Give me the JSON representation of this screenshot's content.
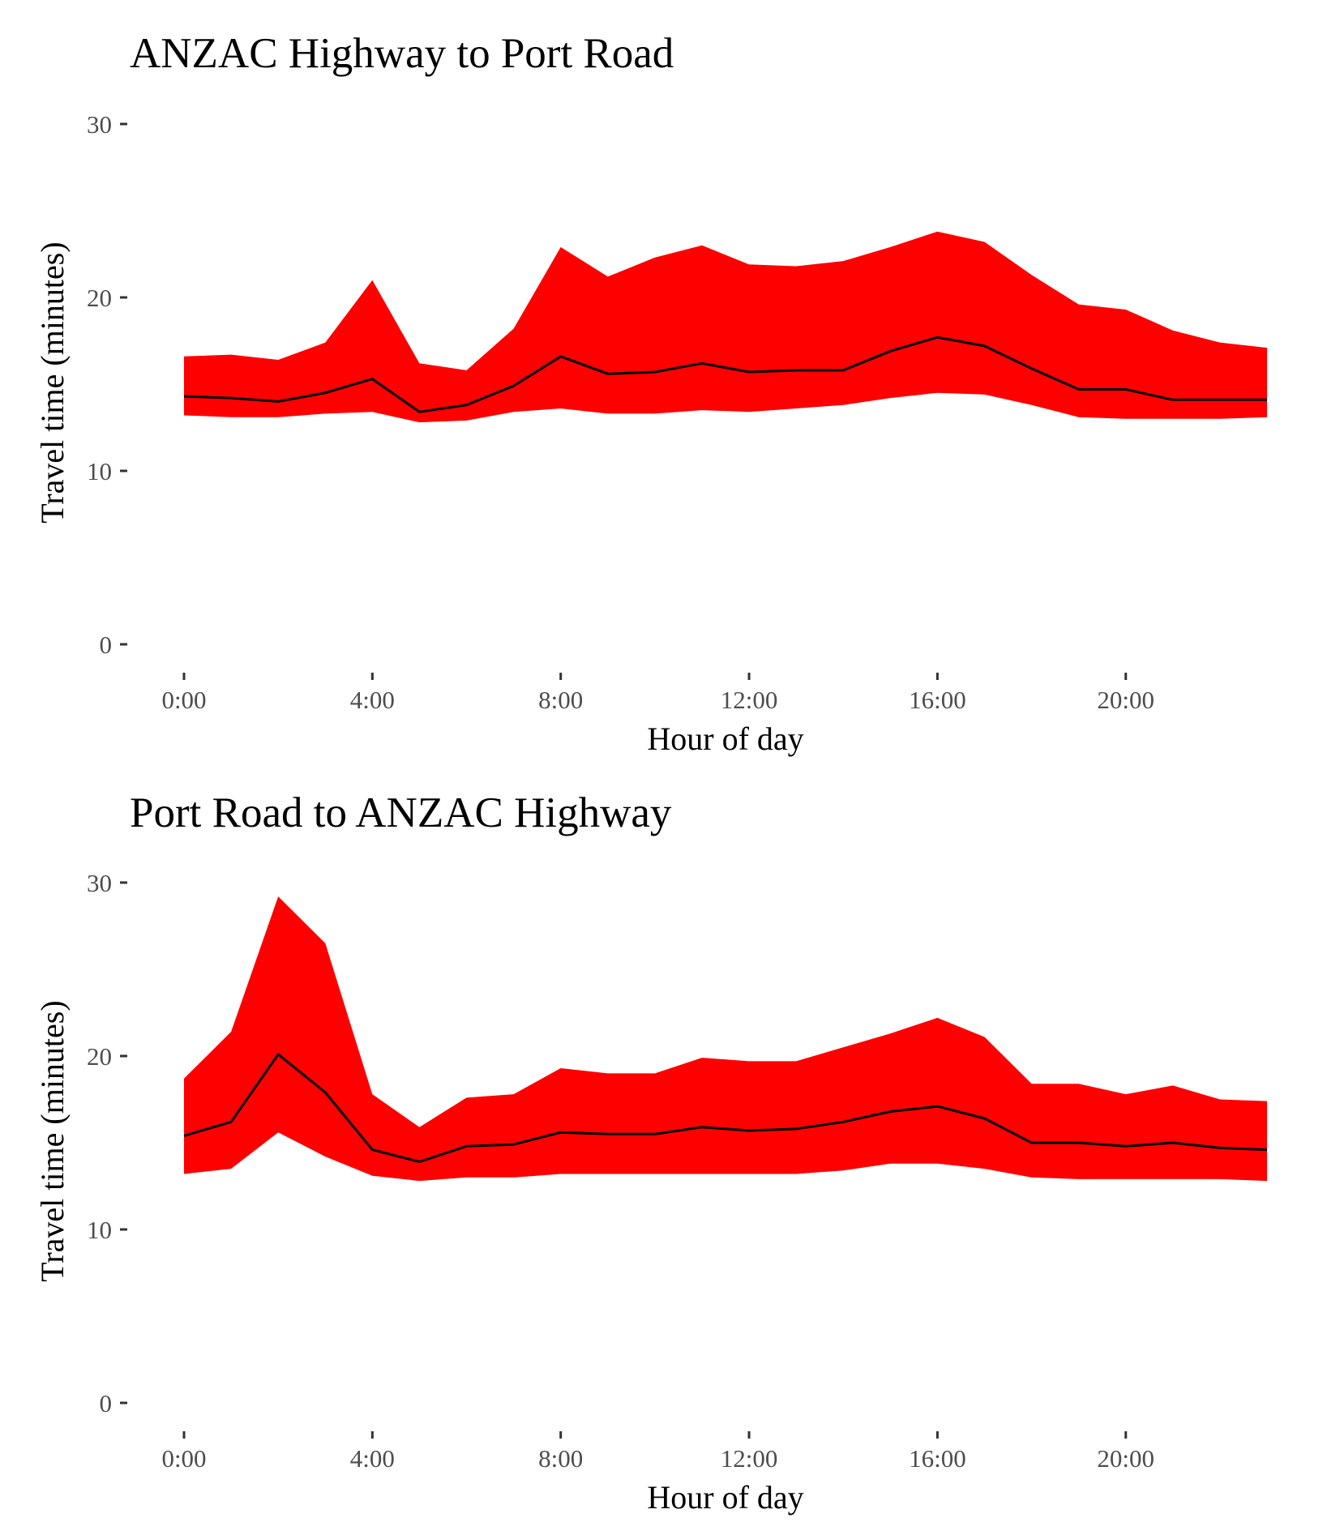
{
  "chart_data": [
    {
      "type": "area",
      "title": "ANZAC Highway to Port Road",
      "xlabel": "Hour of day",
      "ylabel": "Travel time (minutes)",
      "ylim": [
        0,
        30
      ],
      "xlim": [
        0,
        23
      ],
      "grid": false,
      "x_ticks": [
        {
          "value": 0,
          "label": "0:00"
        },
        {
          "value": 4,
          "label": "4:00"
        },
        {
          "value": 8,
          "label": "8:00"
        },
        {
          "value": 12,
          "label": "12:00"
        },
        {
          "value": 16,
          "label": "16:00"
        },
        {
          "value": 20,
          "label": "20:00"
        }
      ],
      "y_ticks": [
        {
          "value": 0,
          "label": "0"
        },
        {
          "value": 10,
          "label": "10"
        },
        {
          "value": 20,
          "label": "20"
        },
        {
          "value": 30,
          "label": "30"
        }
      ],
      "band_color": "#ff0000",
      "line_color": "#000000",
      "x": [
        0,
        1,
        2,
        3,
        4,
        5,
        6,
        7,
        8,
        9,
        10,
        11,
        12,
        13,
        14,
        15,
        16,
        17,
        18,
        19,
        20,
        21,
        22,
        23
      ],
      "band_upper": [
        16.6,
        16.7,
        16.4,
        17.4,
        21.0,
        16.2,
        15.8,
        18.2,
        22.9,
        21.2,
        22.3,
        23.0,
        21.9,
        21.8,
        22.1,
        22.9,
        23.8,
        23.2,
        21.3,
        19.6,
        19.3,
        18.1,
        17.4,
        17.1
      ],
      "band_lower": [
        13.2,
        13.1,
        13.1,
        13.3,
        13.4,
        12.8,
        12.9,
        13.4,
        13.6,
        13.3,
        13.3,
        13.5,
        13.4,
        13.6,
        13.8,
        14.2,
        14.5,
        14.4,
        13.8,
        13.1,
        13.0,
        13.0,
        13.0,
        13.1
      ],
      "median": [
        14.3,
        14.2,
        14.0,
        14.5,
        15.3,
        13.4,
        13.8,
        14.9,
        16.6,
        15.6,
        15.7,
        16.2,
        15.7,
        15.8,
        15.8,
        16.9,
        17.7,
        17.2,
        15.9,
        14.7,
        14.7,
        14.1,
        14.1,
        14.1
      ]
    },
    {
      "type": "area",
      "title": "Port Road to ANZAC Highway",
      "xlabel": "Hour of day",
      "ylabel": "Travel time (minutes)",
      "ylim": [
        0,
        30
      ],
      "xlim": [
        0,
        23
      ],
      "grid": false,
      "x_ticks": [
        {
          "value": 0,
          "label": "0:00"
        },
        {
          "value": 4,
          "label": "4:00"
        },
        {
          "value": 8,
          "label": "8:00"
        },
        {
          "value": 12,
          "label": "12:00"
        },
        {
          "value": 16,
          "label": "16:00"
        },
        {
          "value": 20,
          "label": "20:00"
        }
      ],
      "y_ticks": [
        {
          "value": 0,
          "label": "0"
        },
        {
          "value": 10,
          "label": "10"
        },
        {
          "value": 20,
          "label": "20"
        },
        {
          "value": 30,
          "label": "30"
        }
      ],
      "band_color": "#ff0000",
      "line_color": "#000000",
      "x": [
        0,
        1,
        2,
        3,
        4,
        5,
        6,
        7,
        8,
        9,
        10,
        11,
        12,
        13,
        14,
        15,
        16,
        17,
        18,
        19,
        20,
        21,
        22,
        23
      ],
      "band_upper": [
        18.7,
        21.4,
        29.2,
        26.5,
        17.8,
        15.9,
        17.6,
        17.8,
        19.3,
        19.0,
        19.0,
        19.9,
        19.7,
        19.7,
        20.5,
        21.3,
        22.2,
        21.1,
        18.4,
        18.4,
        17.8,
        18.3,
        17.5,
        17.4
      ],
      "band_lower": [
        13.2,
        13.5,
        15.6,
        14.2,
        13.1,
        12.8,
        13.0,
        13.0,
        13.2,
        13.2,
        13.2,
        13.2,
        13.2,
        13.2,
        13.4,
        13.8,
        13.8,
        13.5,
        13.0,
        12.9,
        12.9,
        12.9,
        12.9,
        12.8
      ],
      "median": [
        15.4,
        16.2,
        20.1,
        17.9,
        14.6,
        13.9,
        14.8,
        14.9,
        15.6,
        15.5,
        15.5,
        15.9,
        15.7,
        15.8,
        16.2,
        16.8,
        17.1,
        16.4,
        15.0,
        15.0,
        14.8,
        15.0,
        14.7,
        14.6
      ]
    }
  ]
}
